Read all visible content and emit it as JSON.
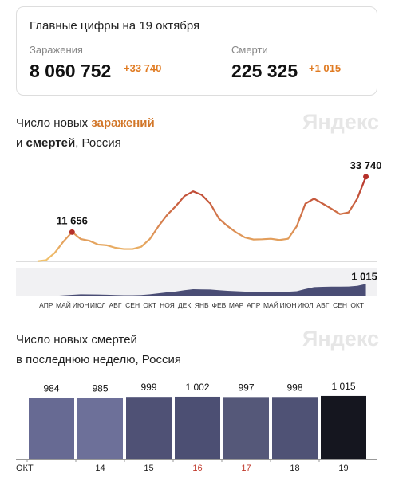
{
  "summary": {
    "title": "Главные цифры на 19 октября",
    "cases_label": "Заражения",
    "cases_total": "8 060 752",
    "cases_new": "+33 740",
    "deaths_label": "Смерти",
    "deaths_total": "225 325",
    "deaths_new": "+1 015"
  },
  "chart_data": [
    {
      "type": "line",
      "title": [
        [
          "Число новых ",
          "заражений"
        ],
        [
          "и ",
          "смертей",
          ", Россия"
        ]
      ],
      "watermark": "Яндекс",
      "categories": [
        null,
        "АПР",
        null,
        "МАЙ",
        null,
        "ИЮН",
        null,
        "ИЮЛ",
        null,
        "АВГ",
        null,
        "СЕН",
        null,
        "ОКТ",
        null,
        "НОЯ",
        null,
        "ДЕК",
        null,
        "ЯНВ",
        null,
        "ФЕВ",
        null,
        "МАР",
        null,
        "АПР",
        null,
        "МАЙ",
        null,
        "ИЮН",
        null,
        "ИЮЛ",
        null,
        "АВГ",
        null,
        "СЕН",
        null,
        "ОКТ",
        null
      ],
      "series": [
        {
          "colors": [
            "#f2c46d",
            "#b5302a"
          ],
          "ylim": [
            0,
            34000
          ],
          "values": [
            50,
            500,
            3400,
            7900,
            11656,
            8900,
            8200,
            6700,
            6400,
            5400,
            4900,
            4900,
            5800,
            8900,
            14000,
            18500,
            22000,
            26000,
            27900,
            26500,
            23000,
            17000,
            14000,
            11500,
            9500,
            8700,
            8800,
            9000,
            8500,
            9000,
            14000,
            23000,
            25000,
            23000,
            21000,
            18800,
            19500,
            25000,
            33740
          ],
          "value_labels": [
            null,
            null,
            null,
            null,
            "11 656",
            null,
            null,
            null,
            null,
            null,
            null,
            null,
            null,
            null,
            null,
            null,
            null,
            null,
            null,
            null,
            null,
            null,
            null,
            null,
            null,
            null,
            null,
            null,
            null,
            null,
            null,
            null,
            null,
            null,
            null,
            null,
            null,
            null,
            "33 740"
          ]
        },
        {
          "color": "#4a4d75",
          "ylim": [
            0,
            1100
          ],
          "values": [
            0,
            10,
            40,
            90,
            130,
            170,
            160,
            150,
            140,
            110,
            100,
            100,
            110,
            170,
            250,
            330,
            400,
            500,
            580,
            570,
            560,
            500,
            450,
            420,
            390,
            370,
            380,
            370,
            360,
            380,
            420,
            600,
            750,
            780,
            790,
            790,
            800,
            860,
            1015
          ],
          "value_labels": [
            null,
            null,
            null,
            null,
            null,
            null,
            null,
            null,
            null,
            null,
            null,
            null,
            null,
            null,
            null,
            null,
            null,
            null,
            null,
            null,
            null,
            null,
            null,
            null,
            null,
            null,
            null,
            null,
            null,
            null,
            null,
            null,
            null,
            null,
            null,
            null,
            null,
            null,
            "1 015"
          ]
        }
      ]
    },
    {
      "type": "bar",
      "title": [
        [
          "Число новых смертей"
        ],
        [
          "в последнюю неделю, Россия"
        ]
      ],
      "watermark": "Яндекс",
      "categories": [
        "ОКТ",
        "14",
        "15",
        "16",
        "17",
        "18",
        "19"
      ],
      "category_colors": [
        "#222",
        "#222",
        "#222",
        "#c0392b",
        "#c0392b",
        "#222",
        "#222"
      ],
      "values": [
        984,
        985,
        999,
        1002,
        997,
        998,
        1015
      ],
      "value_labels": [
        "984",
        "985",
        "999",
        "1 002",
        "997",
        "998",
        "1 015"
      ],
      "colors": [
        "#676a93",
        "#6d7099",
        "#4f5175",
        "#4c4f73",
        "#555879",
        "#4f5275",
        "#15161f"
      ],
      "ylim": [
        0,
        1040
      ]
    }
  ]
}
